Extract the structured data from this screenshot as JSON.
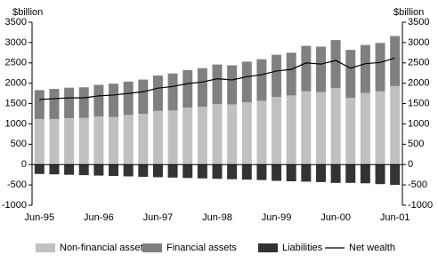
{
  "chart_data": {
    "type": "bar",
    "stacked": true,
    "y_unit_label": "$billion",
    "categories": [
      "Jun-95",
      null,
      null,
      null,
      "Jun-96",
      null,
      null,
      null,
      "Jun-97",
      null,
      null,
      null,
      "Jun-98",
      null,
      null,
      null,
      "Jun-99",
      null,
      null,
      null,
      "Jun-00",
      null,
      null,
      null,
      "Jun-01"
    ],
    "series": [
      {
        "name": "Non-financial assets",
        "color": "#c0c0c0",
        "values": [
          1120,
          1120,
          1140,
          1150,
          1180,
          1170,
          1220,
          1250,
          1320,
          1330,
          1400,
          1420,
          1490,
          1480,
          1530,
          1570,
          1660,
          1700,
          1800,
          1780,
          1880,
          1640,
          1760,
          1800,
          1930
        ]
      },
      {
        "name": "Financial assets",
        "color": "#808080",
        "values": [
          710,
          740,
          750,
          750,
          780,
          820,
          820,
          840,
          870,
          910,
          920,
          950,
          970,
          960,
          1000,
          1020,
          1040,
          1050,
          1120,
          1120,
          1180,
          1180,
          1180,
          1190,
          1230
        ]
      },
      {
        "name": "Liabilities",
        "color": "#333333",
        "values": [
          -230,
          -240,
          -250,
          -260,
          -270,
          -280,
          -290,
          -300,
          -310,
          -320,
          -330,
          -340,
          -350,
          -360,
          -370,
          -380,
          -400,
          -410,
          -420,
          -430,
          -450,
          -450,
          -460,
          -480,
          -500
        ]
      },
      {
        "name": "Net wealth",
        "type": "line",
        "color": "#000000",
        "values": [
          1600,
          1620,
          1640,
          1640,
          1690,
          1710,
          1750,
          1790,
          1880,
          1920,
          1990,
          2030,
          2110,
          2080,
          2160,
          2210,
          2300,
          2340,
          2500,
          2470,
          2560,
          2370,
          2480,
          2510,
          2620
        ]
      }
    ],
    "ylim": [
      -1000,
      3500
    ],
    "yticks": [
      -1000,
      -500,
      0,
      500,
      1000,
      1500,
      2000,
      2500,
      3000,
      3500
    ],
    "legend": "bottom"
  }
}
